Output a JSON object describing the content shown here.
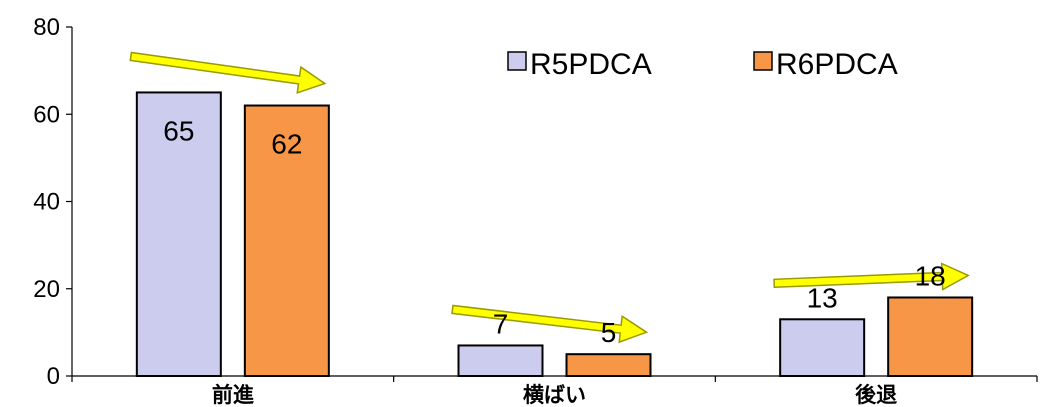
{
  "chart_data": {
    "type": "bar",
    "categories": [
      "前進",
      "横ばい",
      "後退"
    ],
    "series": [
      {
        "name": "R5PDCA",
        "values": [
          65,
          7,
          13
        ],
        "color": "#ccccee"
      },
      {
        "name": "R6PDCA",
        "values": [
          62,
          5,
          18
        ],
        "color": "#f79646"
      }
    ],
    "ylim": [
      0,
      80
    ],
    "yticks": [
      0,
      20,
      40,
      60,
      80
    ],
    "grid": false,
    "legend_position": "top-right",
    "annotations": {
      "arrow_color": "#ffff00",
      "arrow_outline": "#999900"
    }
  }
}
